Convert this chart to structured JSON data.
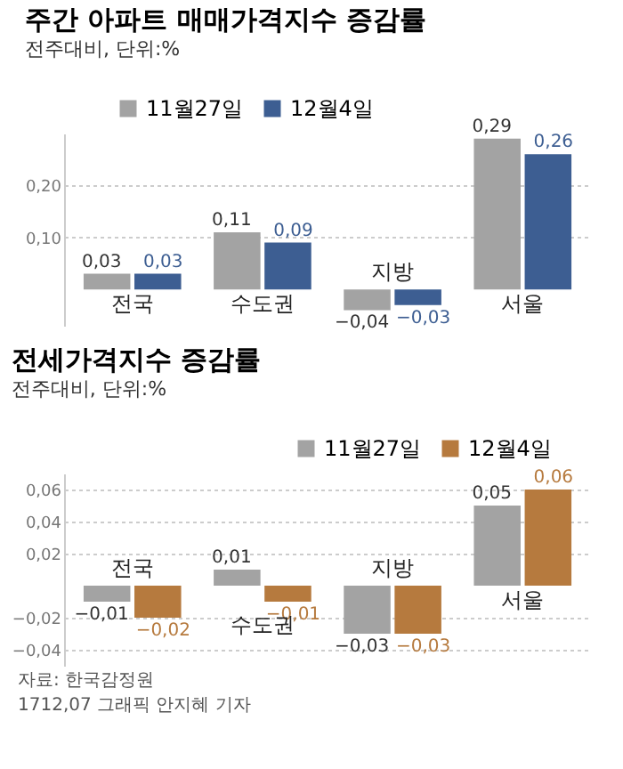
{
  "chart_data": [
    {
      "type": "bar",
      "title": "주간 아파트 매매가격지수 증감률",
      "subtitle": "전주대비, 단위:%",
      "categories": [
        "전국",
        "수도권",
        "지방",
        "서울"
      ],
      "series": [
        {
          "name": "11월27일",
          "color": "#a3a3a3",
          "values": [
            0.03,
            0.11,
            -0.04,
            0.29
          ],
          "value_labels": [
            "0,03",
            "0,11",
            "−0,04",
            "0,29"
          ]
        },
        {
          "name": "12월4일",
          "color": "#3d5e92",
          "values": [
            0.03,
            0.09,
            -0.03,
            0.26
          ],
          "value_labels": [
            "0,03",
            "0,09",
            "−0,03",
            "0,26"
          ]
        }
      ],
      "ylim": [
        -0.07,
        0.3
      ],
      "yticks": [
        {
          "value": 0.1,
          "label": "0,10"
        },
        {
          "value": 0.2,
          "label": "0,20"
        }
      ],
      "grid": "y",
      "legend": "top left"
    },
    {
      "type": "bar",
      "title": "전세가격지수 증감률",
      "subtitle": "전주대비, 단위:%",
      "categories": [
        "전국",
        "수도권",
        "지방",
        "서울"
      ],
      "series": [
        {
          "name": "11월27일",
          "color": "#a3a3a3",
          "values": [
            -0.01,
            0.01,
            -0.03,
            0.05
          ],
          "value_labels": [
            "−0,01",
            "0,01",
            "−0,03",
            "0,05"
          ]
        },
        {
          "name": "12월4일",
          "color": "#b67a3e",
          "values": [
            -0.02,
            -0.01,
            -0.03,
            0.06
          ],
          "value_labels": [
            "−0,02",
            "−0,01",
            "−0,03",
            "0,06"
          ]
        }
      ],
      "ylim": [
        -0.05,
        0.07
      ],
      "yticks": [
        {
          "value": -0.04,
          "label": "−0,04"
        },
        {
          "value": -0.02,
          "label": "−0,02"
        },
        {
          "value": 0.02,
          "label": "0,02"
        },
        {
          "value": 0.04,
          "label": "0,04"
        },
        {
          "value": 0.06,
          "label": "0,06"
        }
      ],
      "grid": "y",
      "legend": "top right",
      "annotations": [
        "자료: 한국감정원",
        "1712,07 그래픽 안지혜 기자"
      ]
    }
  ]
}
